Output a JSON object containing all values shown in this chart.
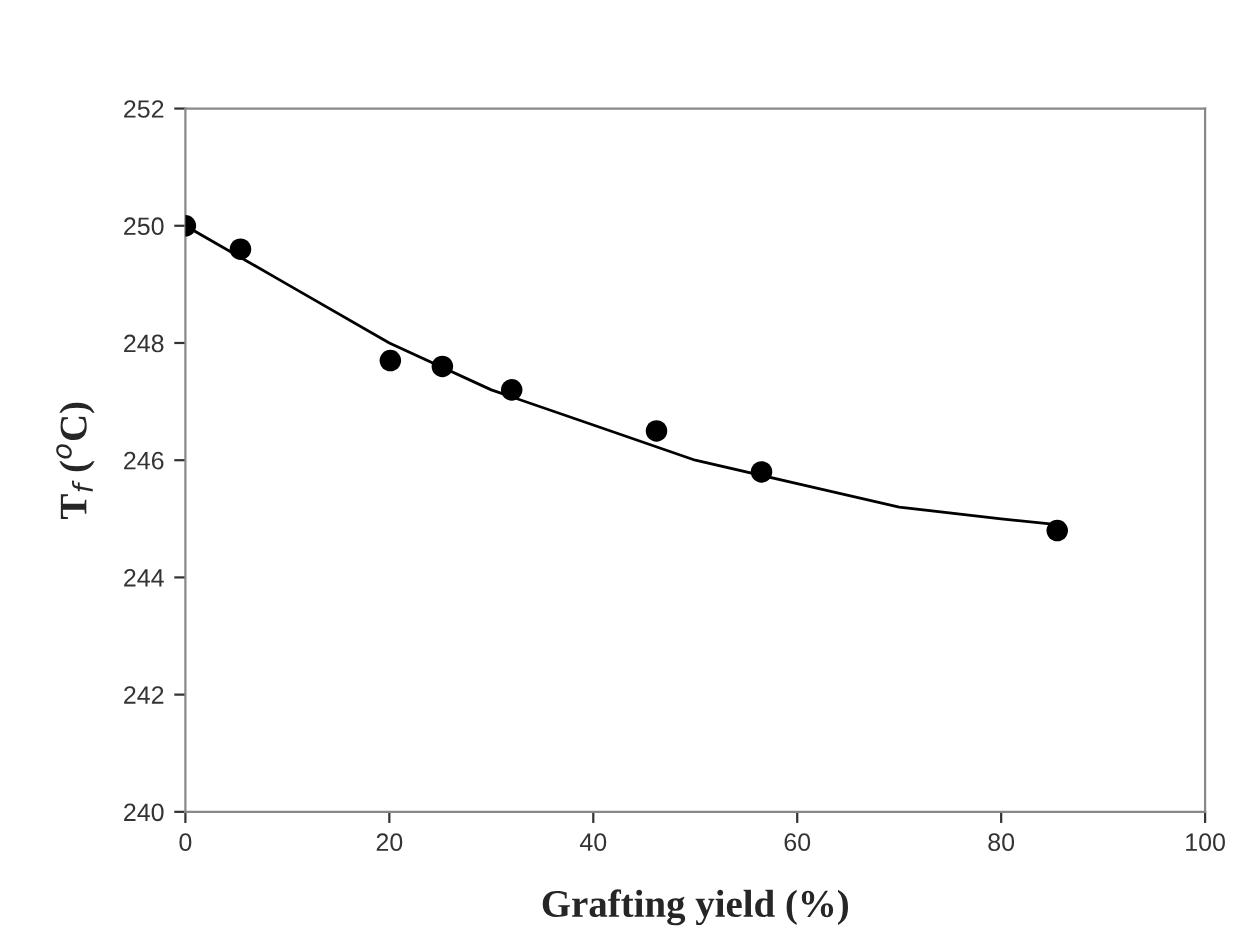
{
  "chart_data": {
    "type": "scatter",
    "xlabel": "Grafting yield (%)",
    "ylabel": "T$_{f}$ ($^{o}$C)",
    "series": [
      {
        "color": "#000000",
        "marker": "circle",
        "x": [
          0,
          5.4,
          20.1,
          25.2,
          32.0,
          46.2,
          56.5,
          85.5
        ],
        "values": [
          250.0,
          249.6,
          247.7,
          247.6,
          247.2,
          246.5,
          245.8,
          244.8
        ]
      },
      {
        "type": "line",
        "color": "#000000",
        "marker": "none",
        "line_style": "solid",
        "x": [
          0,
          10,
          20,
          30,
          40,
          50,
          60,
          70,
          80,
          85.5
        ],
        "values": [
          250.0,
          249.0,
          248.0,
          247.2,
          246.6,
          246.0,
          245.6,
          245.2,
          245.0,
          244.9
        ]
      }
    ],
    "xlim": [
      0,
      100
    ],
    "xticks": [
      0,
      20,
      40,
      60,
      80,
      100
    ],
    "ylim": [
      240,
      252
    ],
    "yticks": [
      240,
      242,
      244,
      246,
      248,
      250,
      252
    ],
    "grid": false,
    "legend": false
  }
}
